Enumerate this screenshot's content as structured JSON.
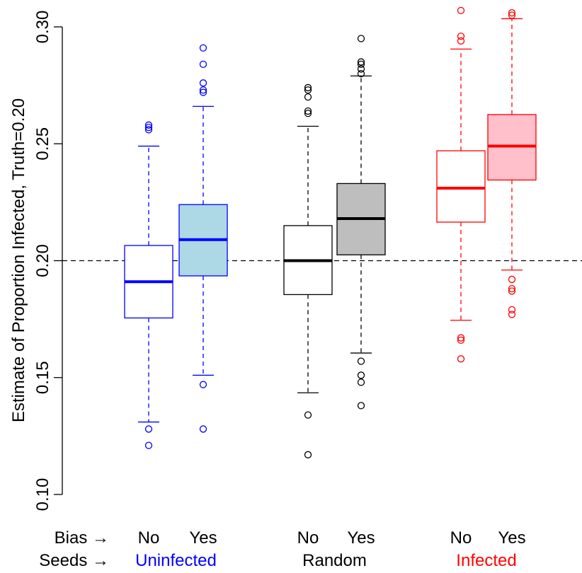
{
  "chart_data": {
    "type": "box",
    "ylabel": "Estimate of Proportion Infected, Truth=0.20",
    "ylim": [
      0.1,
      0.3
    ],
    "yticks": [
      0.1,
      0.15,
      0.2,
      0.25,
      0.3
    ],
    "ytick_labels": [
      "0.10",
      "0.15",
      "0.20",
      "0.25",
      "0.30"
    ],
    "reference_line": 0.2,
    "row_labels": {
      "bias": "Bias →",
      "seeds": "Seeds →"
    },
    "groups": [
      {
        "seeds_label": "Uninfected",
        "color": "#0000ff",
        "fill": "#add8e6"
      },
      {
        "seeds_label": "Random",
        "color": "#000000",
        "fill": "#bebebe"
      },
      {
        "seeds_label": "Infected",
        "color": "#ff0000",
        "fill": "#ffc0cb"
      }
    ],
    "boxes": [
      {
        "group": 0,
        "bias": "No",
        "whisker_low": 0.131,
        "q1": 0.1755,
        "median": 0.191,
        "q3": 0.2065,
        "whisker_high": 0.249,
        "outliers": [
          0.256,
          0.257,
          0.258,
          0.128,
          0.121
        ]
      },
      {
        "group": 0,
        "bias": "Yes",
        "whisker_low": 0.151,
        "q1": 0.1935,
        "median": 0.209,
        "q3": 0.224,
        "whisker_high": 0.266,
        "outliers": [
          0.291,
          0.284,
          0.276,
          0.273,
          0.272,
          0.147,
          0.128
        ]
      },
      {
        "group": 1,
        "bias": "No",
        "whisker_low": 0.1435,
        "q1": 0.1855,
        "median": 0.2,
        "q3": 0.215,
        "whisker_high": 0.2575,
        "outliers": [
          0.274,
          0.273,
          0.27,
          0.264,
          0.263,
          0.134,
          0.117
        ]
      },
      {
        "group": 1,
        "bias": "Yes",
        "whisker_low": 0.1605,
        "q1": 0.2025,
        "median": 0.218,
        "q3": 0.233,
        "whisker_high": 0.279,
        "outliers": [
          0.295,
          0.285,
          0.284,
          0.282,
          0.28,
          0.157,
          0.151,
          0.148,
          0.138
        ]
      },
      {
        "group": 2,
        "bias": "No",
        "whisker_low": 0.1745,
        "q1": 0.2165,
        "median": 0.231,
        "q3": 0.247,
        "whisker_high": 0.2905,
        "outliers": [
          0.307,
          0.296,
          0.294,
          0.167,
          0.166,
          0.158
        ]
      },
      {
        "group": 2,
        "bias": "Yes",
        "whisker_low": 0.196,
        "q1": 0.2345,
        "median": 0.249,
        "q3": 0.2625,
        "whisker_high": 0.3035,
        "outliers": [
          0.306,
          0.305,
          0.192,
          0.188,
          0.187,
          0.179,
          0.177
        ]
      }
    ]
  }
}
